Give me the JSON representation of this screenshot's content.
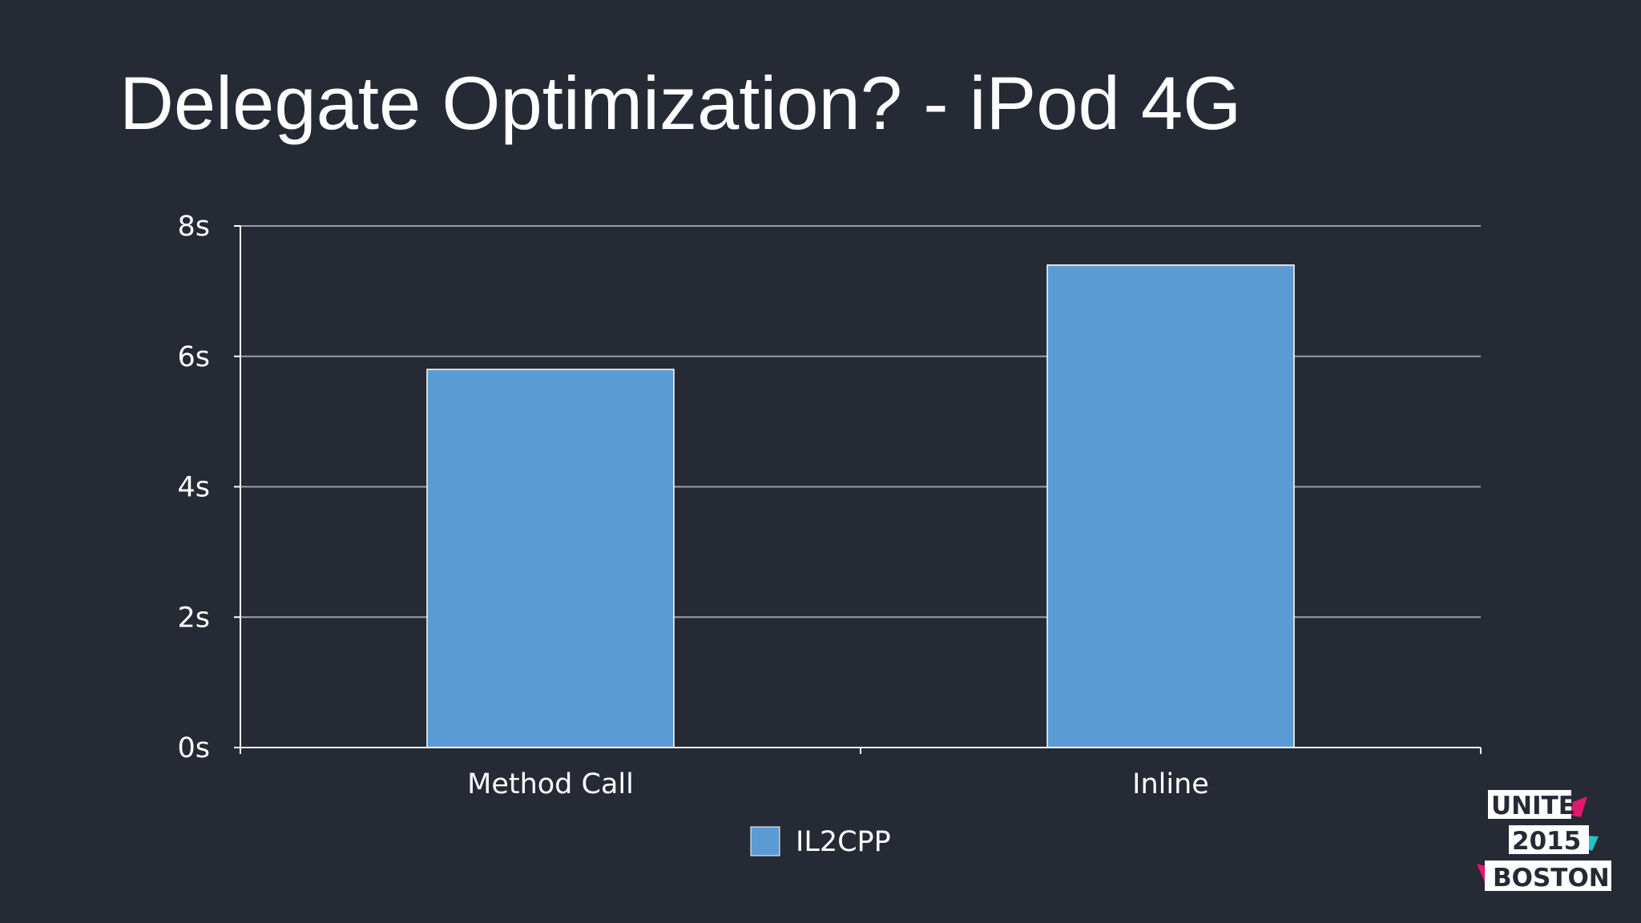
{
  "slide": {
    "title": "Delegate Optimization? - iPod 4G"
  },
  "chart_data": {
    "type": "bar",
    "categories": [
      "Method Call",
      "Inline"
    ],
    "series": [
      {
        "name": "IL2CPP",
        "values": [
          5.8,
          7.4
        ],
        "color": "#5b9bd5"
      }
    ],
    "ylim": [
      0,
      8
    ],
    "yticks": [
      0,
      2,
      4,
      6,
      8
    ],
    "ytick_labels": [
      "0s",
      "2s",
      "4s",
      "6s",
      "8s"
    ],
    "xlabel": "",
    "ylabel": "",
    "grid": true,
    "legend_position": "bottom"
  },
  "logo": {
    "line1": "UNITE",
    "line2": "2015",
    "line3": "BOSTON",
    "colors": {
      "pink": "#e0186f",
      "teal": "#22c3c3",
      "white": "#ffffff"
    }
  }
}
